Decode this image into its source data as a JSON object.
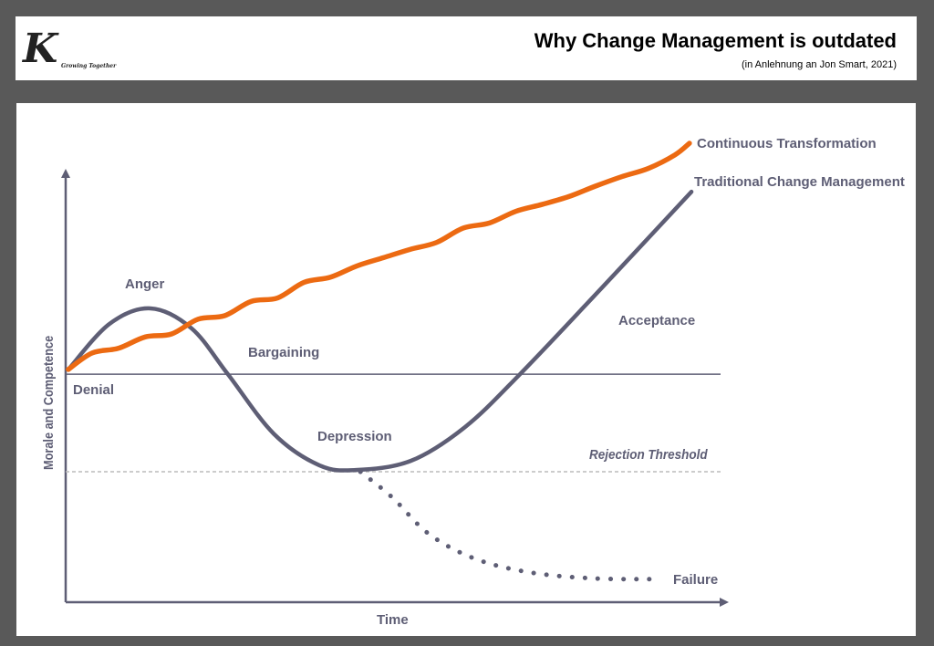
{
  "header": {
    "logo_letter": "K",
    "logo_tagline": "Growing Together",
    "title": "Why Change Management is outdated",
    "subtitle": "(in Anlehnung an Jon Smart, 2021)"
  },
  "colors": {
    "orange": "#ec6a12",
    "gray_curve": "#5e5e75",
    "background": "#595959"
  },
  "chart_data": {
    "type": "line",
    "title": "Why Change Management is outdated",
    "xlabel": "Time",
    "ylabel": "Morale and Competence",
    "xlim": [
      0,
      100
    ],
    "ylim": [
      0,
      110
    ],
    "grid": false,
    "reference_lines": [
      {
        "name": "baseline",
        "y": 52.6,
        "label": ""
      },
      {
        "name": "rejection-threshold",
        "y": 30.1,
        "label": "Rejection Threshold",
        "style": "dashed"
      }
    ],
    "series": [
      {
        "name": "Continuous Transformation",
        "color": "#ec6a12",
        "style": "solid",
        "x": [
          0.4,
          4,
          8,
          12,
          16,
          20,
          24,
          28,
          32,
          36,
          40,
          44,
          48,
          52,
          56,
          60,
          64,
          68,
          72,
          76,
          80,
          84,
          88,
          92,
          94.2
        ],
        "y": [
          53.7,
          57.5,
          58.6,
          61.2,
          61.9,
          65.3,
          66.1,
          69.4,
          70.2,
          73.8,
          75.0,
          77.6,
          79.5,
          81.4,
          83.0,
          86.3,
          87.5,
          90.2,
          91.8,
          93.6,
          96.0,
          98.2,
          100.1,
          103.2,
          105.9
        ]
      },
      {
        "name": "Traditional Change Management",
        "color": "#5e5e75",
        "style": "solid",
        "x": [
          0.4,
          6.6,
          12.8,
          19,
          24.5,
          31.4,
          38.3,
          43.8,
          52.1,
          60.3,
          68.6,
          81,
          94.5
        ],
        "y": [
          53.7,
          64.2,
          67.8,
          63.2,
          52.6,
          38.9,
          31.6,
          30.5,
          32.6,
          40.4,
          52.6,
          72.6,
          94.7
        ]
      },
      {
        "name": "Failure",
        "color": "#5e5e75",
        "style": "dotted",
        "x": [
          44.5,
          49.3,
          54.8,
          61.7,
          70,
          79.6,
          89.3
        ],
        "y": [
          30.1,
          24.2,
          15.8,
          10.1,
          6.9,
          5.5,
          5.3
        ]
      }
    ],
    "annotations": [
      "Denial",
      "Anger",
      "Bargaining",
      "Depression",
      "Acceptance",
      "Failure",
      "Rejection Threshold"
    ]
  }
}
